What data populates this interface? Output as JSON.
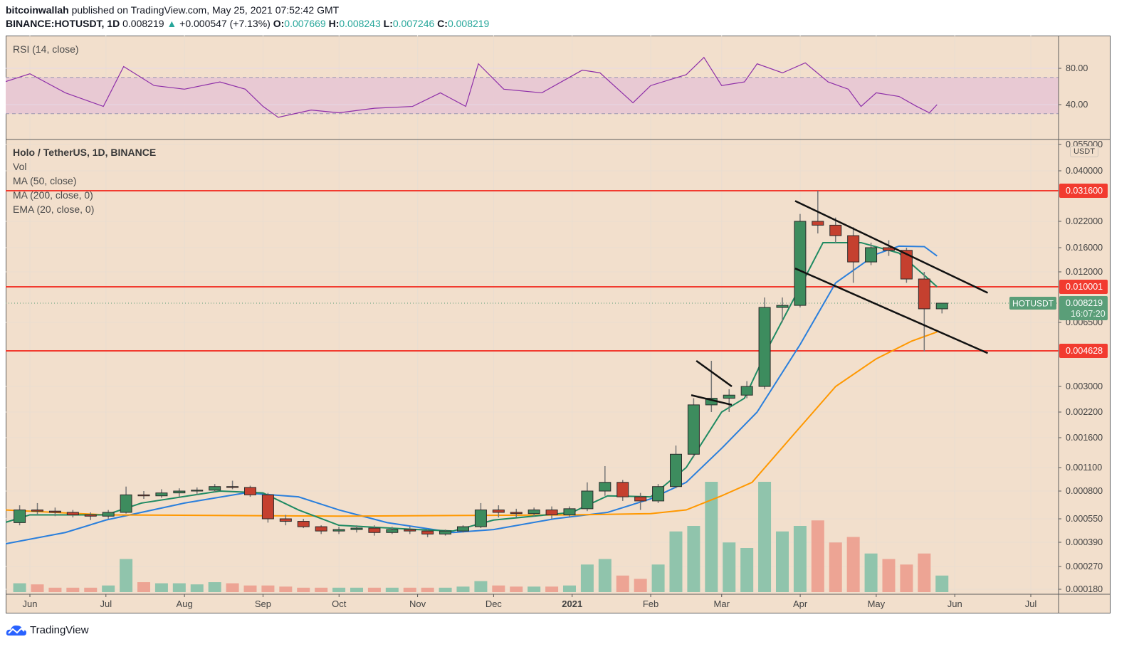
{
  "header": {
    "publisher": "bitcoinwallah",
    "published_text": "published on TradingView.com, May 25, 2021 07:52:42 GMT",
    "symbol": "BINANCE:HOTUSDT, 1D",
    "last": "0.008219",
    "change_arrow": "▲",
    "change": "+0.000547 (+7.13%)",
    "o_label": "O:",
    "o": "0.007669",
    "h_label": "H:",
    "h": "0.008243",
    "l_label": "L:",
    "l": "0.007246",
    "c_label": "C:",
    "c": "0.008219"
  },
  "legend": {
    "rsi_title": "RSI (14, close)",
    "main_title": "Holo / TetherUS, 1D, BINANCE",
    "items": [
      "Vol",
      "MA (50, close)",
      "MA (200, close, 0)",
      "EMA (20, close, 0)"
    ]
  },
  "price_axis": {
    "currency": "USDT",
    "symbol_tag": "HOTUSDT",
    "last_price": "0.008219",
    "countdown": "16:07:20"
  },
  "footer": {
    "logo_text": "TradingView"
  },
  "colors": {
    "background": "#f2dfcc",
    "up": "#3d8c5e",
    "down": "#c5402f",
    "level_line": "#f23b2f",
    "ma50": "#2a7fdc",
    "ma200": "#ff9800",
    "ema20": "#1e8a62",
    "rsi": "#8e2fa8",
    "rsi_band": "#e8c9d3",
    "last_price": "#5a9e78"
  },
  "chart_data": [
    {
      "type": "line",
      "title": "RSI (14, close)",
      "ylim": [
        2,
        116
      ],
      "yticks": [
        "80.00",
        "40.00"
      ],
      "ytick_values": [
        80,
        40
      ],
      "band": [
        30,
        70
      ],
      "points": [
        [
          "2020-05-22",
          65
        ],
        [
          "2020-06-01",
          74
        ],
        [
          "2020-06-15",
          53
        ],
        [
          "2020-06-30",
          38
        ],
        [
          "2020-07-08",
          82
        ],
        [
          "2020-07-20",
          61
        ],
        [
          "2020-08-01",
          57
        ],
        [
          "2020-08-15",
          65
        ],
        [
          "2020-08-25",
          57
        ],
        [
          "2020-09-01",
          38
        ],
        [
          "2020-09-07",
          26
        ],
        [
          "2020-09-20",
          34
        ],
        [
          "2020-10-01",
          31
        ],
        [
          "2020-10-15",
          36
        ],
        [
          "2020-10-30",
          38
        ],
        [
          "2020-11-10",
          53
        ],
        [
          "2020-11-20",
          38
        ],
        [
          "2020-11-25",
          85
        ],
        [
          "2020-12-05",
          57
        ],
        [
          "2020-12-20",
          53
        ],
        [
          "2021-01-05",
          78
        ],
        [
          "2021-01-12",
          75
        ],
        [
          "2021-01-25",
          42
        ],
        [
          "2021-02-01",
          61
        ],
        [
          "2021-02-15",
          73
        ],
        [
          "2021-02-22",
          92
        ],
        [
          "2021-03-01",
          61
        ],
        [
          "2021-03-10",
          65
        ],
        [
          "2021-03-15",
          85
        ],
        [
          "2021-03-25",
          75
        ],
        [
          "2021-04-03",
          86
        ],
        [
          "2021-04-12",
          65
        ],
        [
          "2021-04-20",
          57
        ],
        [
          "2021-04-25",
          38
        ],
        [
          "2021-05-01",
          53
        ],
        [
          "2021-05-10",
          49
        ],
        [
          "2021-05-17",
          38
        ],
        [
          "2021-05-22",
          31
        ],
        [
          "2021-05-25",
          40
        ]
      ]
    },
    {
      "type": "candlestick",
      "title": "Holo / TetherUS, 1D, BINANCE",
      "scale": "log",
      "ylim": [
        0.00017,
        0.058
      ],
      "yticks": [
        "0.055000",
        "0.040000",
        "0.022000",
        "0.016000",
        "0.012000",
        "0.006500",
        "0.003000",
        "0.002200",
        "0.001600",
        "0.001100",
        "0.000800",
        "0.000550",
        "0.000390",
        "0.000270",
        "0.000180"
      ],
      "xticks": [
        {
          "label": "Jun",
          "date": "2020-06-01"
        },
        {
          "label": "Jul",
          "date": "2020-07-01"
        },
        {
          "label": "Aug",
          "date": "2020-08-01"
        },
        {
          "label": "Sep",
          "date": "2020-09-01"
        },
        {
          "label": "Oct",
          "date": "2020-10-01"
        },
        {
          "label": "Nov",
          "date": "2020-11-01"
        },
        {
          "label": "Dec",
          "date": "2020-12-01"
        },
        {
          "label": "2021",
          "date": "2021-01-01",
          "bold": true
        },
        {
          "label": "Feb",
          "date": "2021-02-01"
        },
        {
          "label": "Mar",
          "date": "2021-03-01"
        },
        {
          "label": "Apr",
          "date": "2021-04-01"
        },
        {
          "label": "May",
          "date": "2021-05-01"
        },
        {
          "label": "Jun",
          "date": "2021-06-01"
        },
        {
          "label": "Jul",
          "date": "2021-07-01"
        }
      ],
      "grid": true,
      "candles_columns": [
        "week_of",
        "open",
        "high",
        "low",
        "close",
        "relative_volume"
      ],
      "candles": [
        [
          "2020-05-25",
          0.00052,
          0.00066,
          0.0005,
          0.00062,
          8
        ],
        [
          "2020-06-01",
          0.00062,
          0.00068,
          0.00058,
          0.00061,
          7
        ],
        [
          "2020-06-08",
          0.00061,
          0.00064,
          0.00057,
          0.0006,
          4
        ],
        [
          "2020-06-15",
          0.0006,
          0.00062,
          0.00056,
          0.00058,
          4
        ],
        [
          "2020-06-22",
          0.00058,
          0.0006,
          0.00054,
          0.00057,
          4
        ],
        [
          "2020-06-29",
          0.00057,
          0.00062,
          0.00055,
          0.0006,
          6
        ],
        [
          "2020-07-06",
          0.0006,
          0.00085,
          0.00059,
          0.00076,
          30
        ],
        [
          "2020-07-13",
          0.00076,
          0.0008,
          0.00072,
          0.00075,
          9
        ],
        [
          "2020-07-20",
          0.00075,
          0.00082,
          0.00073,
          0.00078,
          8
        ],
        [
          "2020-07-27",
          0.00078,
          0.00083,
          0.00074,
          0.0008,
          8
        ],
        [
          "2020-08-03",
          0.0008,
          0.00084,
          0.00076,
          0.00081,
          7
        ],
        [
          "2020-08-10",
          0.00081,
          0.00088,
          0.00079,
          0.00085,
          9
        ],
        [
          "2020-08-17",
          0.00085,
          0.00092,
          0.00082,
          0.00084,
          8
        ],
        [
          "2020-08-24",
          0.00084,
          0.00086,
          0.00074,
          0.00076,
          6
        ],
        [
          "2020-08-31",
          0.00076,
          0.00078,
          0.00052,
          0.00055,
          6
        ],
        [
          "2020-09-07",
          0.00055,
          0.00058,
          0.0005,
          0.00053,
          5
        ],
        [
          "2020-09-14",
          0.00053,
          0.00055,
          0.00048,
          0.00049,
          4
        ],
        [
          "2020-09-21",
          0.00049,
          0.0005,
          0.00044,
          0.00046,
          4
        ],
        [
          "2020-09-28",
          0.00046,
          0.00049,
          0.00044,
          0.00047,
          4
        ],
        [
          "2020-10-05",
          0.00047,
          0.0005,
          0.00045,
          0.00048,
          4
        ],
        [
          "2020-10-12",
          0.00048,
          0.0005,
          0.00043,
          0.00045,
          4
        ],
        [
          "2020-10-19",
          0.00045,
          0.00049,
          0.00044,
          0.00047,
          4
        ],
        [
          "2020-10-26",
          0.00047,
          0.00049,
          0.00044,
          0.00046,
          4
        ],
        [
          "2020-11-02",
          0.00046,
          0.00047,
          0.00042,
          0.00044,
          4
        ],
        [
          "2020-11-09",
          0.00044,
          0.00047,
          0.00043,
          0.00046,
          4
        ],
        [
          "2020-11-16",
          0.00046,
          0.0005,
          0.00045,
          0.00049,
          5
        ],
        [
          "2020-11-23",
          0.00049,
          0.00068,
          0.00048,
          0.00062,
          10
        ],
        [
          "2020-11-30",
          0.00062,
          0.00066,
          0.00056,
          0.0006,
          6
        ],
        [
          "2020-12-07",
          0.0006,
          0.00063,
          0.00056,
          0.00059,
          5
        ],
        [
          "2020-12-14",
          0.00059,
          0.00064,
          0.00057,
          0.00062,
          5
        ],
        [
          "2020-12-21",
          0.00062,
          0.00065,
          0.00055,
          0.00058,
          5
        ],
        [
          "2020-12-28",
          0.00058,
          0.00065,
          0.00056,
          0.00063,
          6
        ],
        [
          "2021-01-04",
          0.00063,
          0.0009,
          0.00061,
          0.0008,
          25
        ],
        [
          "2021-01-11",
          0.0008,
          0.00112,
          0.00075,
          0.0009,
          30
        ],
        [
          "2021-01-18",
          0.0009,
          0.00093,
          0.0007,
          0.00074,
          15
        ],
        [
          "2021-01-25",
          0.00074,
          0.00078,
          0.00062,
          0.0007,
          12
        ],
        [
          "2021-02-01",
          0.0007,
          0.00088,
          0.00068,
          0.00085,
          25
        ],
        [
          "2021-02-08",
          0.00085,
          0.00145,
          0.00083,
          0.0013,
          55
        ],
        [
          "2021-02-15",
          0.0013,
          0.0026,
          0.00125,
          0.0024,
          60
        ],
        [
          "2021-02-22",
          0.0024,
          0.0041,
          0.0022,
          0.0026,
          100
        ],
        [
          "2021-03-01",
          0.0026,
          0.0029,
          0.0022,
          0.0027,
          45
        ],
        [
          "2021-03-08",
          0.0027,
          0.0032,
          0.0026,
          0.003,
          40
        ],
        [
          "2021-03-15",
          0.003,
          0.0088,
          0.0029,
          0.0078,
          100
        ],
        [
          "2021-03-22",
          0.0078,
          0.0088,
          0.0065,
          0.008,
          55
        ],
        [
          "2021-03-29",
          0.008,
          0.024,
          0.0078,
          0.022,
          60
        ],
        [
          "2021-04-05",
          0.022,
          0.0316,
          0.019,
          0.021,
          65
        ],
        [
          "2021-04-12",
          0.021,
          0.023,
          0.017,
          0.0185,
          45
        ],
        [
          "2021-04-19",
          0.0185,
          0.0205,
          0.0105,
          0.0135,
          50
        ],
        [
          "2021-04-26",
          0.0135,
          0.017,
          0.013,
          0.016,
          35
        ],
        [
          "2021-05-03",
          0.016,
          0.0175,
          0.0145,
          0.0155,
          30
        ],
        [
          "2021-05-10",
          0.0155,
          0.016,
          0.0105,
          0.011,
          25
        ],
        [
          "2021-05-17",
          0.011,
          0.012,
          0.0046,
          0.00767,
          35
        ],
        [
          "2021-05-24",
          0.00767,
          0.00824,
          0.00725,
          0.008219,
          15
        ]
      ],
      "series": [
        {
          "name": "MA (50, close)",
          "key": "ma50",
          "points": [
            [
              "2020-05-22",
              0.00038
            ],
            [
              "2020-06-15",
              0.00045
            ],
            [
              "2020-07-01",
              0.00054
            ],
            [
              "2020-08-01",
              0.00068
            ],
            [
              "2020-08-25",
              0.00078
            ],
            [
              "2020-09-15",
              0.00074
            ],
            [
              "2020-10-01",
              0.00062
            ],
            [
              "2020-10-20",
              0.00052
            ],
            [
              "2020-11-15",
              0.00045
            ],
            [
              "2020-12-01",
              0.00047
            ],
            [
              "2020-12-25",
              0.00055
            ],
            [
              "2021-01-15",
              0.0006
            ],
            [
              "2021-02-01",
              0.00072
            ],
            [
              "2021-02-15",
              0.0009
            ],
            [
              "2021-03-01",
              0.0014
            ],
            [
              "2021-03-15",
              0.0022
            ],
            [
              "2021-04-01",
              0.005
            ],
            [
              "2021-04-15",
              0.0105
            ],
            [
              "2021-05-01",
              0.0148
            ],
            [
              "2021-05-10",
              0.0163
            ],
            [
              "2021-05-20",
              0.0162
            ],
            [
              "2021-05-25",
              0.0145
            ]
          ]
        },
        {
          "name": "MA (200, close, 0)",
          "key": "ma200",
          "points": [
            [
              "2020-05-22",
              0.00062
            ],
            [
              "2020-07-01",
              0.00058
            ],
            [
              "2020-10-01",
              0.00057
            ],
            [
              "2021-01-01",
              0.00058
            ],
            [
              "2021-02-01",
              0.00059
            ],
            [
              "2021-02-15",
              0.00062
            ],
            [
              "2021-03-01",
              0.00075
            ],
            [
              "2021-03-13",
              0.0009
            ],
            [
              "2021-03-30",
              0.0017
            ],
            [
              "2021-04-15",
              0.003
            ],
            [
              "2021-05-01",
              0.0042
            ],
            [
              "2021-05-15",
              0.0052
            ],
            [
              "2021-05-25",
              0.0058
            ]
          ]
        },
        {
          "name": "EMA (20, close, 0)",
          "key": "ema20",
          "points": [
            [
              "2020-05-22",
              0.00052
            ],
            [
              "2020-06-01",
              0.00058
            ],
            [
              "2020-07-01",
              0.00058
            ],
            [
              "2020-07-15",
              0.00068
            ],
            [
              "2020-08-15",
              0.0008
            ],
            [
              "2020-09-01",
              0.00078
            ],
            [
              "2020-09-15",
              0.00062
            ],
            [
              "2020-10-01",
              0.0005
            ],
            [
              "2020-11-01",
              0.00047
            ],
            [
              "2020-11-15",
              0.00046
            ],
            [
              "2020-12-01",
              0.00054
            ],
            [
              "2021-01-01",
              0.0006
            ],
            [
              "2021-01-15",
              0.00075
            ],
            [
              "2021-02-01",
              0.00074
            ],
            [
              "2021-02-15",
              0.0011
            ],
            [
              "2021-03-01",
              0.0022
            ],
            [
              "2021-03-10",
              0.0026
            ],
            [
              "2021-03-20",
              0.005
            ],
            [
              "2021-04-01",
              0.01
            ],
            [
              "2021-04-10",
              0.017
            ],
            [
              "2021-04-25",
              0.017
            ],
            [
              "2021-05-10",
              0.015
            ],
            [
              "2021-05-20",
              0.0115
            ],
            [
              "2021-05-25",
              0.01
            ]
          ]
        }
      ],
      "horizontal_levels": [
        "0.031600",
        "0.010001",
        "0.004628"
      ],
      "horizontal_level_values": [
        0.0316,
        0.010001,
        0.004628
      ],
      "trendlines": [
        [
          [
            "2021-03-30",
            0.028
          ],
          [
            "2021-06-14",
            0.0093
          ]
        ],
        [
          [
            "2021-03-30",
            0.0125
          ],
          [
            "2021-06-14",
            0.0045
          ]
        ],
        [
          [
            "2021-02-19",
            0.0041
          ],
          [
            "2021-03-05",
            0.003
          ]
        ],
        [
          [
            "2021-02-17",
            0.0027
          ],
          [
            "2021-03-05",
            0.0024
          ]
        ]
      ]
    }
  ]
}
